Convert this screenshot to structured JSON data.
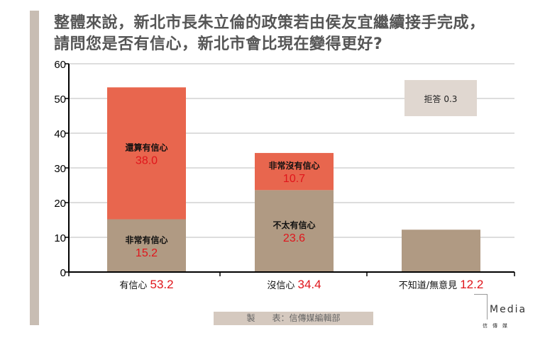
{
  "title_line1": "整體來說，新北市長朱立倫的政策若由侯友宜繼續接手完成，",
  "title_line2": "請問您是否有信心，新北市會比現在變得更好?",
  "credit": "製　　表：信傳媒編輯部",
  "logo": {
    "text": "Media",
    "sub": "信　傳　媒"
  },
  "colors": {
    "upper": "#e8664e",
    "lower": "#b09a83",
    "refuse_box": "#e0d7d0",
    "value": "#e0151b"
  },
  "chart_data": {
    "type": "bar",
    "stacked": true,
    "ylim": [
      0,
      60
    ],
    "yticks": [
      "0",
      "10",
      "20",
      "30",
      "40",
      "50",
      "60"
    ],
    "categories": [
      {
        "label": "有信心",
        "total": "53.2"
      },
      {
        "label": "沒信心",
        "total": "34.4"
      },
      {
        "label": "不知道/無意見",
        "total": "12.2"
      }
    ],
    "segments": [
      {
        "cat": 0,
        "name": "非常有信心",
        "value": 15.2,
        "text": "15.2",
        "color": "lower"
      },
      {
        "cat": 0,
        "name": "還算有信心",
        "value": 38.0,
        "text": "38.0",
        "color": "upper"
      },
      {
        "cat": 1,
        "name": "不太有信心",
        "value": 23.6,
        "text": "23.6",
        "color": "lower"
      },
      {
        "cat": 1,
        "name": "非常沒有信心",
        "value": 10.7,
        "text": "10.7",
        "color": "upper"
      },
      {
        "cat": 2,
        "name": "",
        "value": 12.2,
        "text": "",
        "color": "lower"
      }
    ],
    "annotation": "拒答 0.3"
  }
}
